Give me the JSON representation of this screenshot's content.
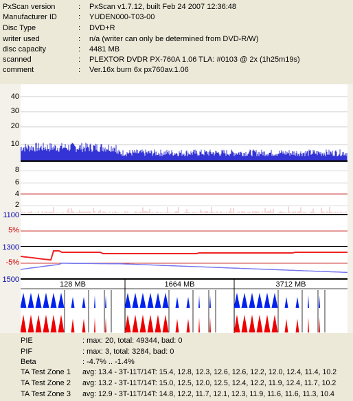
{
  "info": [
    {
      "label": "PxScan version",
      "value": "PxScan v1.7.12, built Feb 24 2007 12:36:48"
    },
    {
      "label": "Manufacturer ID",
      "value": "YUDEN000-T03-00"
    },
    {
      "label": "Disc Type",
      "value": "DVD+R"
    },
    {
      "label": "writer used",
      "value": "n/a (writer can only be determined from DVD-R/W)"
    },
    {
      "label": "disc capacity",
      "value": "4481 MB"
    },
    {
      "label": "scanned",
      "value": "PLEXTOR DVDR PX-760A 1.06 TLA: #0103 @ 2x (1h25m19s)"
    },
    {
      "label": "comment",
      "value": "Ver.16x burn 6x px760av.1.06"
    }
  ],
  "axis": {
    "pie_ticks": [
      "40",
      "30",
      "20",
      "10"
    ],
    "pif_ticks": [
      "8",
      "6",
      "4",
      "2"
    ],
    "jitter_top": "1100",
    "jitter_pct_pos": "5%",
    "beta_top": "1300",
    "beta_pct_neg": "-5%",
    "beta_bottom": "1500"
  },
  "zones": [
    "128 MB",
    "1664 MB",
    "3712 MB"
  ],
  "colors": {
    "pie": "#0000CC",
    "pif": "#DD2222",
    "jitter_red": "#EE2222",
    "jitter_blue": "#7777EE",
    "triangle_blue": "#0022EE",
    "triangle_red": "#EE0000"
  },
  "stats": [
    {
      "label": "PIE",
      "value": ": max: 20, total: 49344, bad: 0"
    },
    {
      "label": "PIF",
      "value": ": max: 3, total: 3284, bad: 0"
    },
    {
      "label": "Beta",
      "value": ": -4.7% .. -1.4%"
    }
  ],
  "ta_zones": [
    {
      "label": "TA Test Zone 1",
      "value": "avg: 13.4 - 3T-11T/14T: 15.4, 12.8, 12.3, 12.6, 12.6, 12.2, 12.0, 12.4, 11.4, 10.2"
    },
    {
      "label": "TA Test Zone 2",
      "value": "avg: 13.2 - 3T-11T/14T: 15.0, 12.5, 12.0, 12.5, 12.4, 12.2, 11.9, 12.4, 11.7, 10.2"
    },
    {
      "label": "TA Test Zone 3",
      "value": "avg: 12.9 - 3T-11T/14T: 14.8, 12.2, 11.7, 12.1, 12.3, 11.9, 11.6, 11.6, 11.3, 10.4"
    }
  ]
}
